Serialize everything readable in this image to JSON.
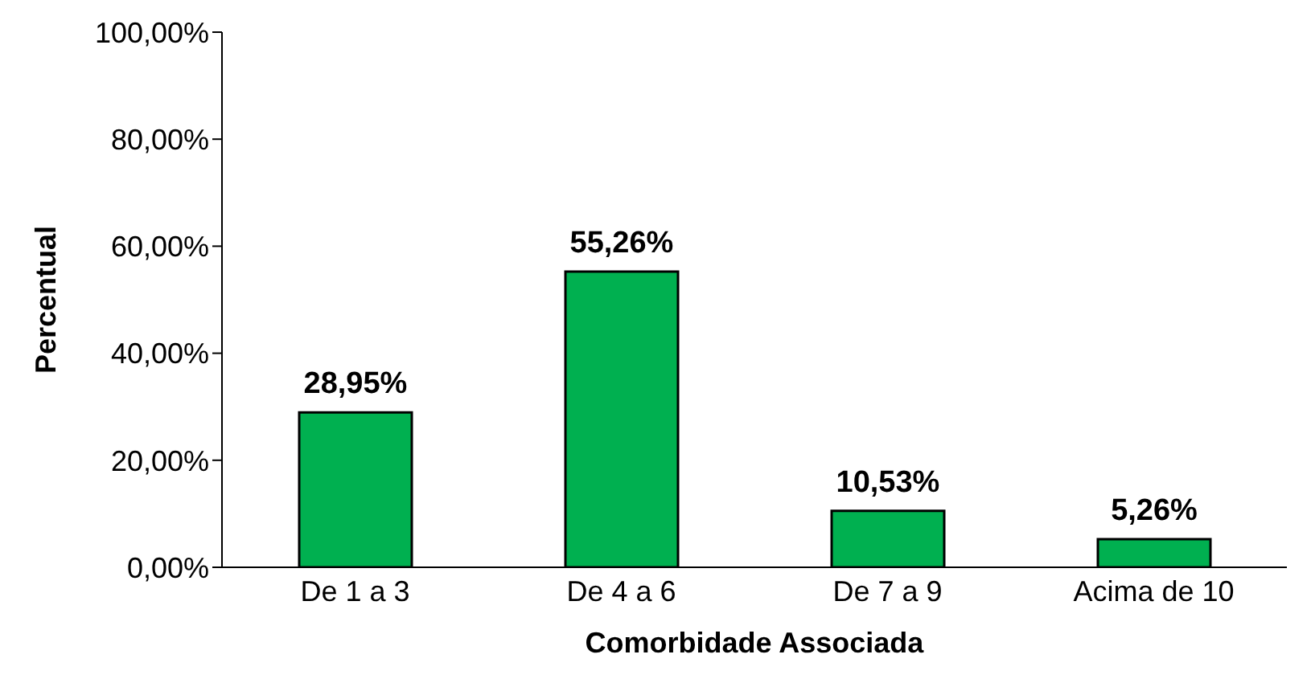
{
  "chart_data": {
    "type": "bar",
    "xlabel": "Comorbidade Associada",
    "ylabel": "Percentual",
    "categories": [
      "De 1 a 3",
      "De 4 a 6",
      "De 7 a 9",
      "Acima de 10"
    ],
    "values": [
      28.95,
      55.26,
      10.53,
      5.26
    ],
    "value_labels": [
      "28,95%",
      "55,26%",
      "10,53%",
      "5,26%"
    ],
    "color": "#00b050",
    "ylim": [
      0,
      100
    ],
    "yticks": [
      {
        "value": 0,
        "label": "0,00%"
      },
      {
        "value": 20,
        "label": "20,00%"
      },
      {
        "value": 40,
        "label": "40,00%"
      },
      {
        "value": 60,
        "label": "60,00%"
      },
      {
        "value": 80,
        "label": "80,00%"
      },
      {
        "value": 100,
        "label": "100,00%"
      }
    ],
    "grid": false,
    "legend": false
  }
}
